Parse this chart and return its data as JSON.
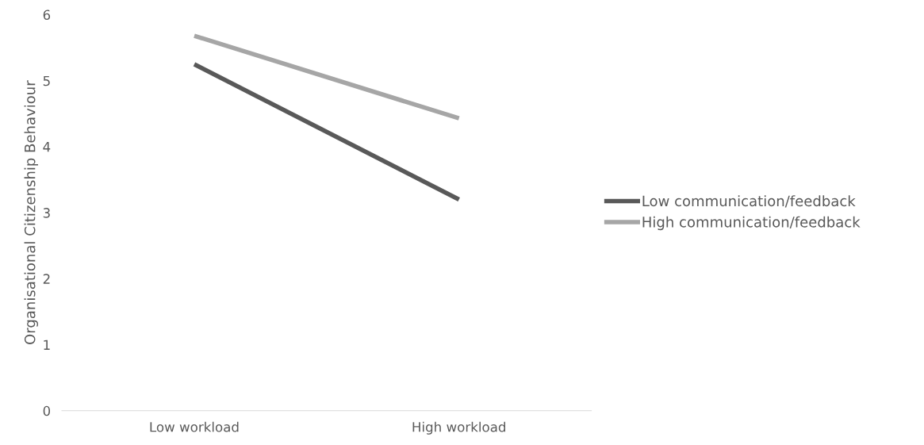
{
  "chart_data": {
    "type": "line",
    "ylabel": "Organisational Citizenship Behaviour",
    "categories": [
      "Low workload",
      "High workload"
    ],
    "series": [
      {
        "name": "Low communication/feedback",
        "color": "#595959",
        "values": [
          5.25,
          3.2
        ]
      },
      {
        "name": "High communication/feedback",
        "color": "#a6a6a6",
        "values": [
          5.68,
          4.43
        ]
      }
    ],
    "ylim": [
      0,
      6
    ],
    "yticks": [
      0,
      1,
      2,
      3,
      4,
      5,
      6
    ],
    "grid": false,
    "legend": "right",
    "marker": "none",
    "line_style": "solid"
  }
}
